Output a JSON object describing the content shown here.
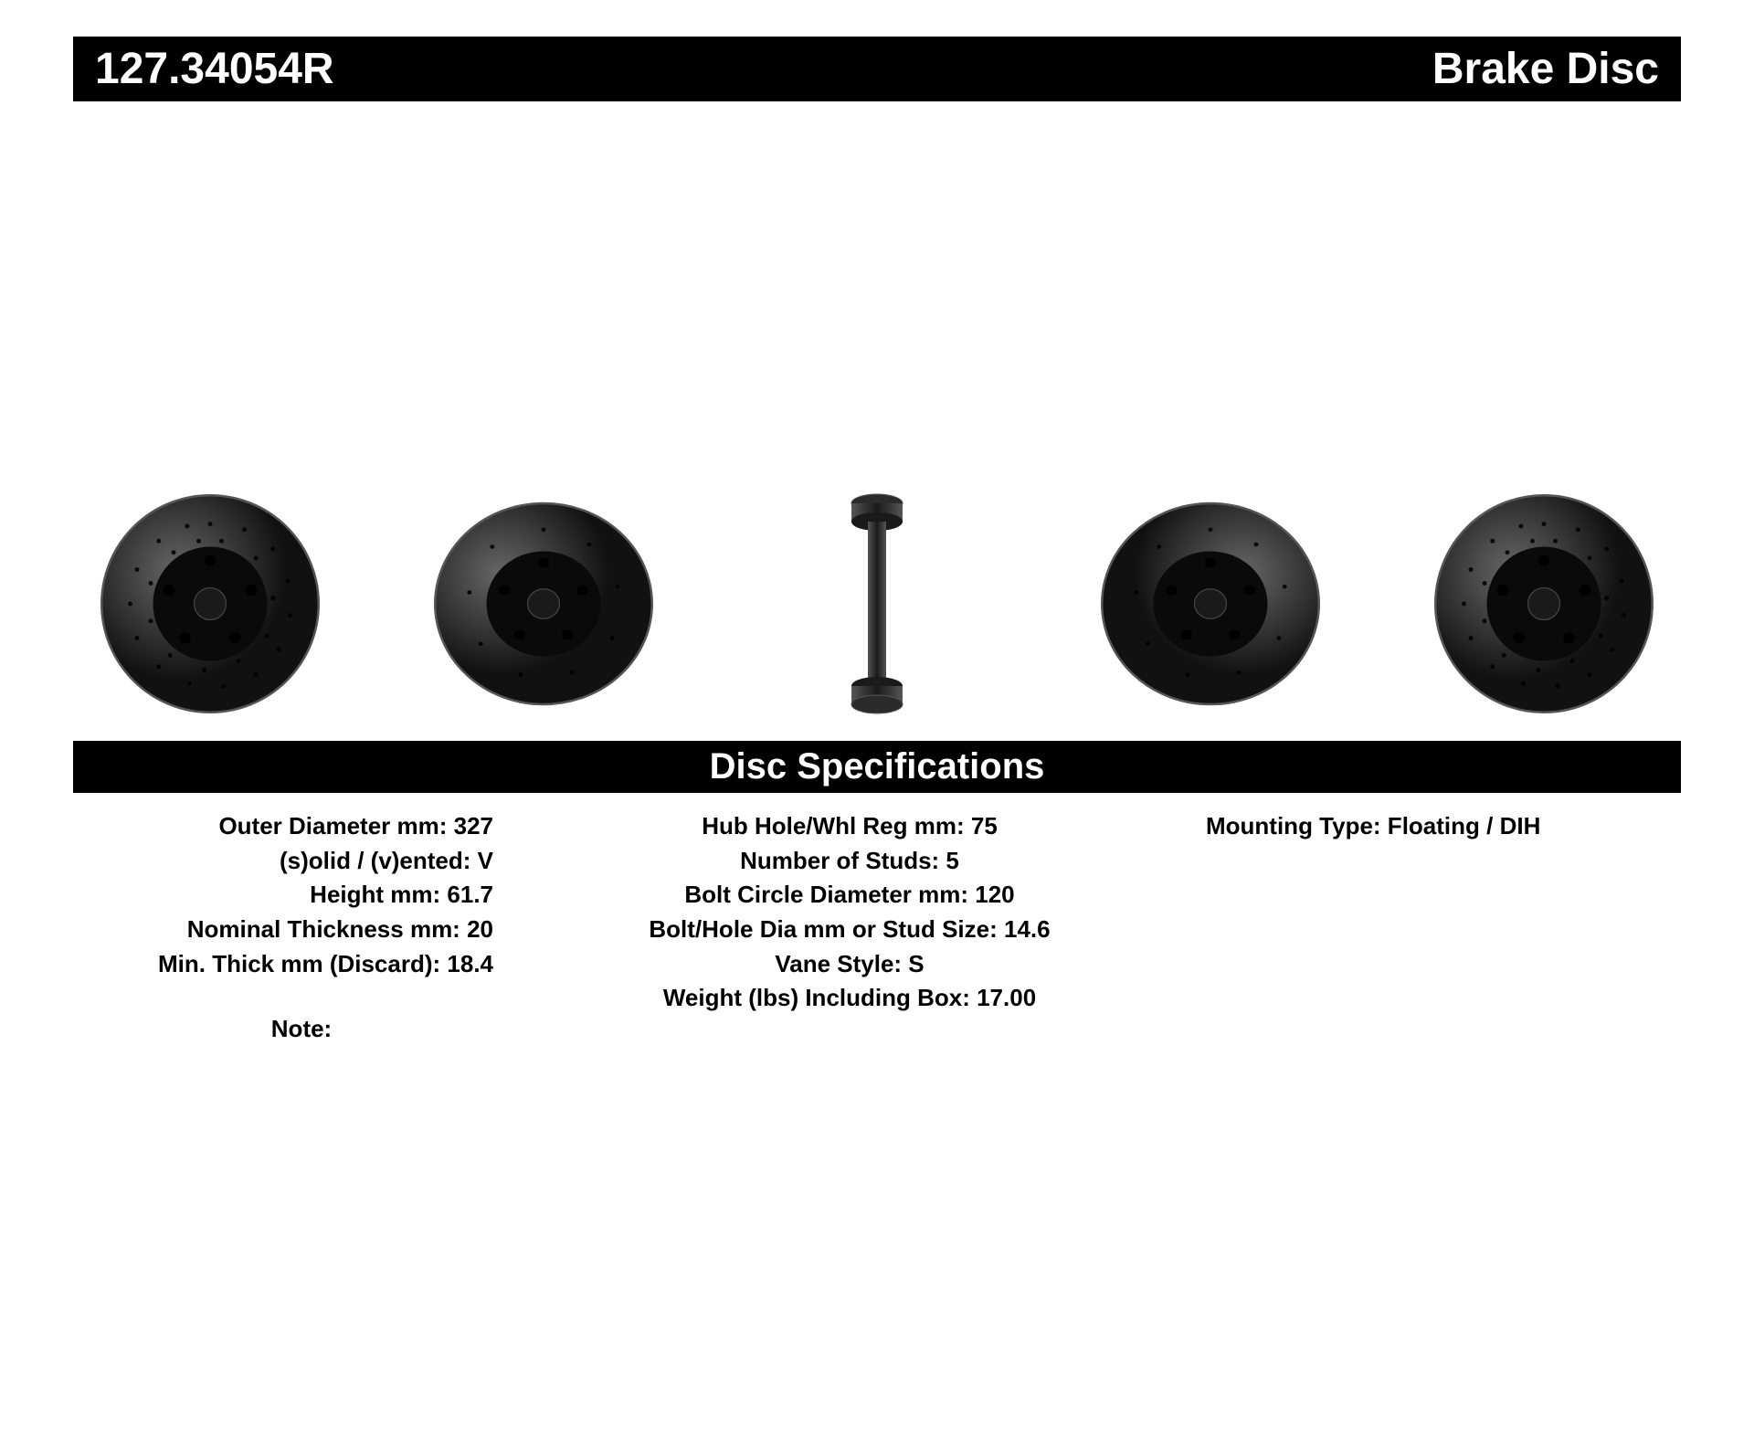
{
  "header": {
    "part_number": "127.34054R",
    "product_type": "Brake Disc"
  },
  "spec_header": "Disc Specifications",
  "specs": {
    "left": [
      {
        "label": "Outer Diameter mm",
        "value": "327"
      },
      {
        "label": "(s)olid / (v)ented",
        "value": "V"
      },
      {
        "label": "Height mm",
        "value": "61.7"
      },
      {
        "label": "Nominal Thickness mm",
        "value": "20"
      },
      {
        "label": "Min. Thick mm (Discard)",
        "value": "18.4"
      }
    ],
    "mid": [
      {
        "label": "Hub Hole/Whl Reg mm",
        "value": "75"
      },
      {
        "label": "Number of Studs",
        "value": "5"
      },
      {
        "label": "Bolt Circle Diameter mm",
        "value": "120"
      },
      {
        "label": "Bolt/Hole Dia mm or Stud Size",
        "value": "14.6"
      },
      {
        "label": "Vane Style",
        "value": "S"
      },
      {
        "label": "Weight (lbs) Including Box",
        "value": "17.00"
      }
    ],
    "right": [
      {
        "label": "Mounting Type",
        "value": "Floating / DIH"
      }
    ]
  },
  "note_label": "Note:",
  "note_value": "",
  "disc_views": {
    "count": 5,
    "face_color": "#2b2b2b",
    "hub_color": "#0a0a0a",
    "edge_color": "#555555",
    "hole_color": "#000000",
    "bolt_holes": 5
  },
  "colors": {
    "bar_bg": "#000000",
    "bar_text": "#ffffff",
    "page_bg": "#ffffff",
    "spec_text": "#000000"
  },
  "typography": {
    "header_fontsize_pt": 36,
    "specbar_fontsize_pt": 30,
    "spec_fontsize_pt": 20,
    "font_family": "Arial"
  }
}
